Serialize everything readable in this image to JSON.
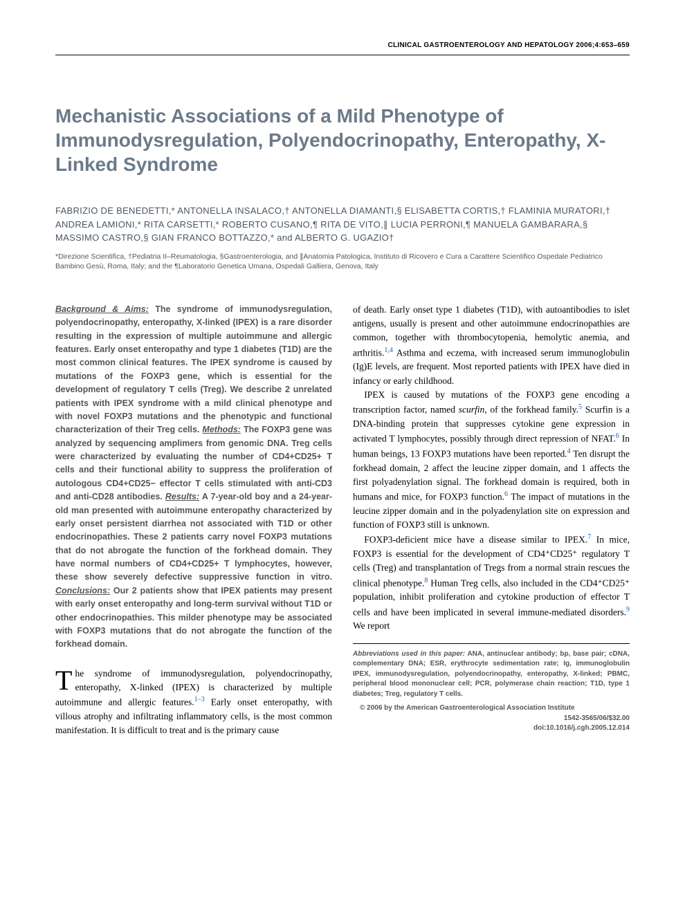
{
  "running_head": "CLINICAL GASTROENTEROLOGY AND HEPATOLOGY 2006;4:653–659",
  "title": "Mechanistic Associations of a Mild Phenotype of Immunodysregulation, Polyendocrinopathy, Enteropathy, X-Linked Syndrome",
  "authors": "FABRIZIO DE BENEDETTI,* ANTONELLA INSALACO,† ANTONELLA DIAMANTI,§ ELISABETTA CORTIS,† FLAMINIA MURATORI,† ANDREA LAMIONI,* RITA CARSETTI,* ROBERTO CUSANO,¶ RITA DE VITO,∥ LUCIA PERRONI,¶ MANUELA GAMBARARA,§ MASSIMO CASTRO,§ GIAN FRANCO BOTTAZZO,* and ALBERTO G. UGAZIO†",
  "affiliations": "*Direzione Scientifica, †Pediatria II–Reumatologia, §Gastroenterologia, and ∥Anatomia Patologica, Instituto di Ricovero e Cura a Carattere Scientifico Ospedale Pediatrico Bambino Gesù, Roma, Italy; and the ¶Laboratorio Genetica Umana, Ospedali Galliera, Genova, Italy",
  "abstract": {
    "background_label": "Background & Aims:",
    "background": " The syndrome of immunodysregulation, polyendocrinopathy, enteropathy, X-linked (IPEX) is a rare disorder resulting in the expression of multiple autoimmune and allergic features. Early onset enteropathy and type 1 diabetes (T1D) are the most common clinical features. The IPEX syndrome is caused by mutations of the FOXP3 gene, which is essential for the development of regulatory T cells (Treg). We describe 2 unrelated patients with IPEX syndrome with a mild clinical phenotype and with novel FOXP3 mutations and the phenotypic and functional characterization of their Treg cells. ",
    "methods_label": "Methods:",
    "methods": " The FOXP3 gene was analyzed by sequencing amplimers from genomic DNA. Treg cells were characterized by evaluating the number of CD4+CD25+ T cells and their functional ability to suppress the proliferation of autologous CD4+CD25− effector T cells stimulated with anti-CD3 and anti-CD28 antibodies. ",
    "results_label": "Results:",
    "results": " A 7-year-old boy and a 24-year-old man presented with autoimmune enteropathy characterized by early onset persistent diarrhea not associated with T1D or other endocrinopathies. These 2 patients carry novel FOXP3 mutations that do not abrogate the function of the forkhead domain. They have normal numbers of CD4+CD25+ T lymphocytes, however, these show severely defective suppressive function in vitro. ",
    "conclusions_label": "Conclusions:",
    "conclusions": " Our 2 patients show that IPEX patients may present with early onset enteropathy and long-term survival without T1D or other endocrinopathies. This milder phenotype may be associated with FOXP3 mutations that do not abrogate the function of the forkhead domain."
  },
  "body": {
    "p1_drop": "T",
    "p1": "he syndrome of immunodysregulation, polyendocrinopathy, enteropathy, X-linked (IPEX) is characterized by multiple autoimmune and allergic features.",
    "p1_ref": "1–3",
    "p1_tail": " Early onset enteropathy, with villous atrophy and infiltrating inflammatory cells, is the most common manifestation. It is difficult to treat and is the primary cause",
    "p2a": "of death. Early onset type 1 diabetes (T1D), with autoantibodies to islet antigens, usually is present and other autoimmune endocrinopathies are common, together with thrombocytopenia, hemolytic anemia, and arthritis.",
    "p2a_ref": "1,4",
    "p2b": " Asthma and eczema, with increased serum immunoglobulin (Ig)E levels, are frequent. Most reported patients with IPEX have died in infancy or early childhood.",
    "p3a": "IPEX is caused by mutations of the FOXP3 gene encoding a transcription factor, named ",
    "p3_em": "scurfin",
    "p3b": ", of the forkhead family.",
    "p3b_ref": "5",
    "p3c": " Scurfin is a DNA-binding protein that suppresses cytokine gene expression in activated T lymphocytes, possibly through direct repression of NFAT.",
    "p3c_ref": "6",
    "p3d": " In human beings, 13 FOXP3 mutations have been reported.",
    "p3d_ref": "4",
    "p3e": " Ten disrupt the forkhead domain, 2 affect the leucine zipper domain, and 1 affects the first polyadenylation signal. The forkhead domain is required, both in humans and mice, for FOXP3 function.",
    "p3e_ref": "6",
    "p3f": " The impact of mutations in the leucine zipper domain and in the polyadenylation site on expression and function of FOXP3 still is unknown.",
    "p4a": "FOXP3-deficient mice have a disease similar to IPEX.",
    "p4a_ref": "7",
    "p4b": " In mice, FOXP3 is essential for the development of CD4⁺CD25⁺ regulatory T cells (Treg) and transplantation of Tregs from a normal strain rescues the clinical phenotype.",
    "p4b_ref": "8",
    "p4c": " Human Treg cells, also included in the CD4⁺CD25⁺ population, inhibit proliferation and cytokine production of effector T cells and have been implicated in several immune-mediated disorders.",
    "p4c_ref": "9",
    "p4d": " We report"
  },
  "footnote": {
    "abbr_label": "Abbreviations used in this paper:",
    "abbr_text": " ANA, antinuclear antibody; bp, base pair; cDNA, complementary DNA; ESR, erythrocyte sedimentation rate; Ig, immunoglobulin IPEX, immunodysregulation, polyendocrinopathy, enteropathy, X-linked; PBMC, peripheral blood mononuclear cell; PCR, polymerase chain reaction; T1D, type 1 diabetes; Treg, regulatory T cells.",
    "copyright": "© 2006 by the American Gastroenterological Association Institute",
    "issn": "1542-3565/06/$32.00",
    "doi": "doi:10.1016/j.cgh.2005.12.014"
  },
  "colors": {
    "title": "#6b7a8a",
    "authors": "#4a5560",
    "abstract": "#555555",
    "ref": "#1a5fb4"
  }
}
